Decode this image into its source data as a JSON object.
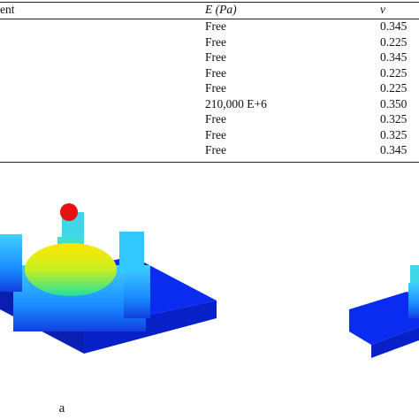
{
  "table": {
    "header": [
      "ent",
      "E (Pa)",
      "v"
    ],
    "rows": [
      [
        "Free",
        "0.345"
      ],
      [
        "Free",
        "0.225"
      ],
      [
        "Free",
        "0.345"
      ],
      [
        "Free",
        "0.225"
      ],
      [
        "Free",
        "0.225"
      ],
      [
        "210,000 E+6",
        "0.350"
      ],
      [
        "Free",
        "0.325"
      ],
      [
        "Free",
        "0.325"
      ],
      [
        "Free",
        "0.345"
      ]
    ]
  },
  "figure": {
    "label": "a"
  }
}
